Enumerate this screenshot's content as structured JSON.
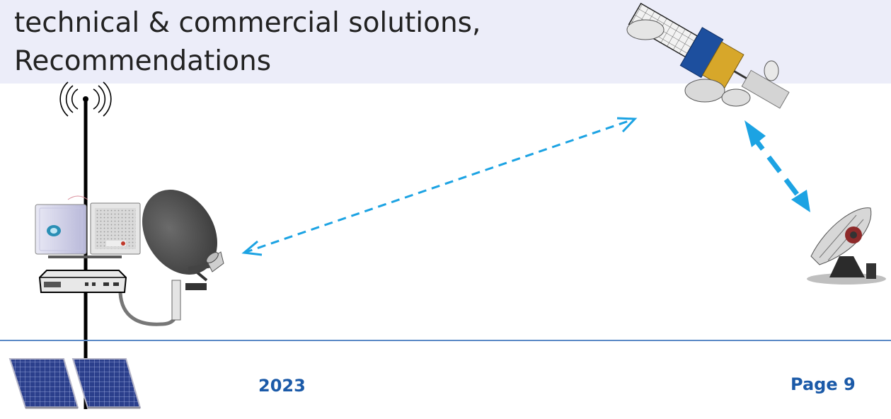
{
  "slide": {
    "title_lines": [
      "technical & commercial solutions,",
      "Recommendations"
    ],
    "year": "2023",
    "page": "Page 9"
  },
  "diagram": {
    "nodes": [
      {
        "id": "antenna-mast",
        "icon": "antenna-mast-icon"
      },
      {
        "id": "radio-unit-white",
        "icon": "radio-unit-icon"
      },
      {
        "id": "radio-unit-grey",
        "icon": "radio-unit-icon"
      },
      {
        "id": "satellite-modem",
        "icon": "modem-icon"
      },
      {
        "id": "vsat-dish",
        "icon": "satellite-dish-icon"
      },
      {
        "id": "solar-panels",
        "icon": "solar-panel-icon"
      },
      {
        "id": "satellite",
        "icon": "satellite-icon"
      },
      {
        "id": "ground-station",
        "icon": "earth-station-icon"
      }
    ],
    "links": [
      {
        "from": "vsat-dish",
        "to": "satellite",
        "style": "dashed",
        "direction": "both"
      },
      {
        "from": "satellite",
        "to": "ground-station",
        "style": "dashed",
        "direction": "both"
      }
    ],
    "colors": {
      "link": "#1ca3e3",
      "title_band": "#ecedf9",
      "footer_text": "#1b5aa8",
      "footer_rule": "#5b8ac6"
    }
  }
}
